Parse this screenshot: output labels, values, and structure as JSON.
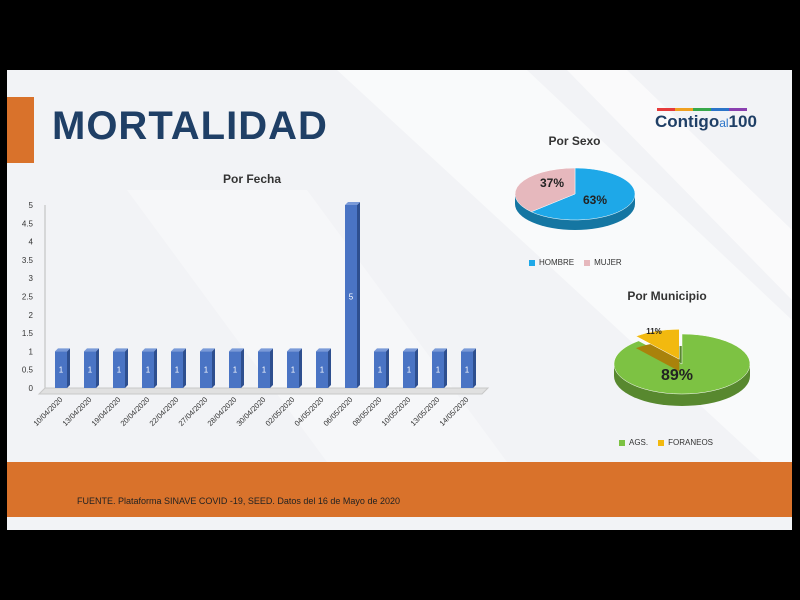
{
  "slide": {
    "title": "MORTALIDAD",
    "logo": {
      "part1": "Contigo",
      "part2": "al",
      "part3": "100"
    },
    "source": "FUENTE. Plataforma SINAVE COVID -19, SEED. Datos del 16 de Mayo de 2020",
    "accent_color": "#d9722b",
    "title_color": "#1f3f66"
  },
  "chart_data": [
    {
      "type": "bar",
      "title": "Por Fecha",
      "categories": [
        "10/04/2020",
        "13/04/2020",
        "19/04/2020",
        "20/04/2020",
        "22/04/2020",
        "27/04/2020",
        "28/04/2020",
        "30/04/2020",
        "02/05/2020",
        "04/05/2020",
        "06/05/2020",
        "08/05/2020",
        "10/05/2020",
        "13/05/2020",
        "14/05/2020"
      ],
      "values": [
        1,
        1,
        1,
        1,
        1,
        1,
        1,
        1,
        1,
        1,
        5,
        1,
        1,
        1,
        1
      ],
      "data_labels": [
        "1",
        "1",
        "1",
        "1",
        "1",
        "1",
        "1",
        "1",
        "1",
        "1",
        "5",
        "1",
        "1",
        "1",
        "1"
      ],
      "ylim": [
        0,
        5
      ],
      "yticks": [
        "0",
        "0.5",
        "1",
        "1.5",
        "2",
        "2.5",
        "3",
        "3.5",
        "4",
        "4.5",
        "5"
      ],
      "color": "#4a74c4",
      "grid": false
    },
    {
      "type": "pie",
      "title": "Por Sexo",
      "labels": [
        "HOMBRE",
        "MUJER"
      ],
      "values": [
        63,
        37
      ],
      "data_labels": [
        "63%",
        "37%"
      ],
      "colors": [
        "#1ea8e8",
        "#e6b8bd"
      ],
      "legend_position": "bottom"
    },
    {
      "type": "pie",
      "title": "Por Municipio",
      "labels": [
        "AGS.",
        "FORANEOS"
      ],
      "values": [
        89,
        11
      ],
      "data_labels": [
        "89%",
        "11%"
      ],
      "colors": [
        "#7dc243",
        "#f2b90f"
      ],
      "legend_position": "bottom"
    }
  ]
}
